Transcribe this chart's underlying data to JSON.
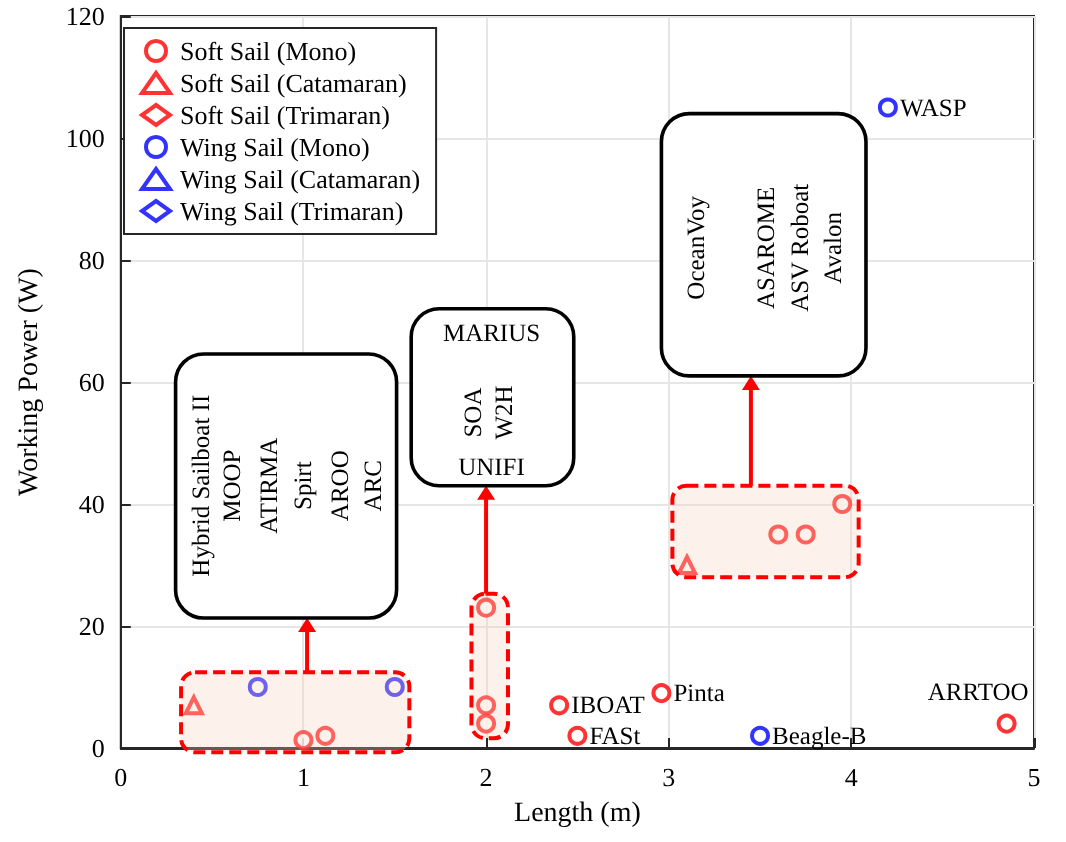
{
  "chart_data": {
    "type": "scatter",
    "xlabel": "Length (m)",
    "ylabel": "Working Power (W)",
    "xlim": [
      0,
      5
    ],
    "xticks": [
      0,
      1,
      2,
      3,
      4,
      5
    ],
    "ylim": [
      0,
      120
    ],
    "yticks": [
      0,
      20,
      40,
      60,
      80,
      100,
      120
    ],
    "grid": true,
    "legend": "top left",
    "series": [
      {
        "name": "Soft Sail (Mono)",
        "color": "#ff0000",
        "marker": "circle",
        "x": [
          1.0,
          1.12,
          2.0,
          2.0,
          2.0,
          2.4,
          2.5,
          2.96,
          3.6,
          3.75,
          3.95,
          4.85
        ],
        "values": [
          1.3,
          2,
          23,
          7,
          4,
          7,
          2,
          9,
          35,
          35,
          40,
          4
        ]
      },
      {
        "name": "Soft Sail (Catamaran)",
        "color": "#ff0000",
        "marker": "triangle",
        "x": [
          0.4,
          3.1
        ],
        "values": [
          7,
          30
        ]
      },
      {
        "name": "Soft Sail (Trimaran)",
        "color": "#ff0000",
        "marker": "diamond"
      },
      {
        "name": "Wing Sail (Mono)",
        "color": "#0000ff",
        "marker": "circle",
        "x": [
          0.75,
          1.5,
          3.5,
          4.2
        ],
        "values": [
          10,
          10,
          2,
          105
        ]
      },
      {
        "name": "Wing Sail (Catamaran)",
        "color": "#0000ff",
        "marker": "triangle"
      },
      {
        "name": "Wing Sail (Trimaran)",
        "color": "#0000ff",
        "marker": "diamond"
      }
    ],
    "annotations": [
      {
        "text": "IBOAT",
        "x": 2.4,
        "y": 7
      },
      {
        "text": "FASt",
        "x": 2.5,
        "y": 2
      },
      {
        "text": "Pinta",
        "x": 2.96,
        "y": 9
      },
      {
        "text": "Beagle-B",
        "x": 3.5,
        "y": 2
      },
      {
        "text": "ARRTOO",
        "x": 4.85,
        "y": 4
      },
      {
        "text": "WASP",
        "x": 4.2,
        "y": 105
      },
      "Hybrid Sailboat II",
      "MOOP",
      "ATIRMA",
      "Spirt",
      "AROO",
      "ARC",
      "MARIUS",
      "SOA",
      "W2H",
      "UNIFI",
      "OceanVoy",
      "ASAROME",
      "ASV Roboat",
      "Avalon"
    ]
  }
}
